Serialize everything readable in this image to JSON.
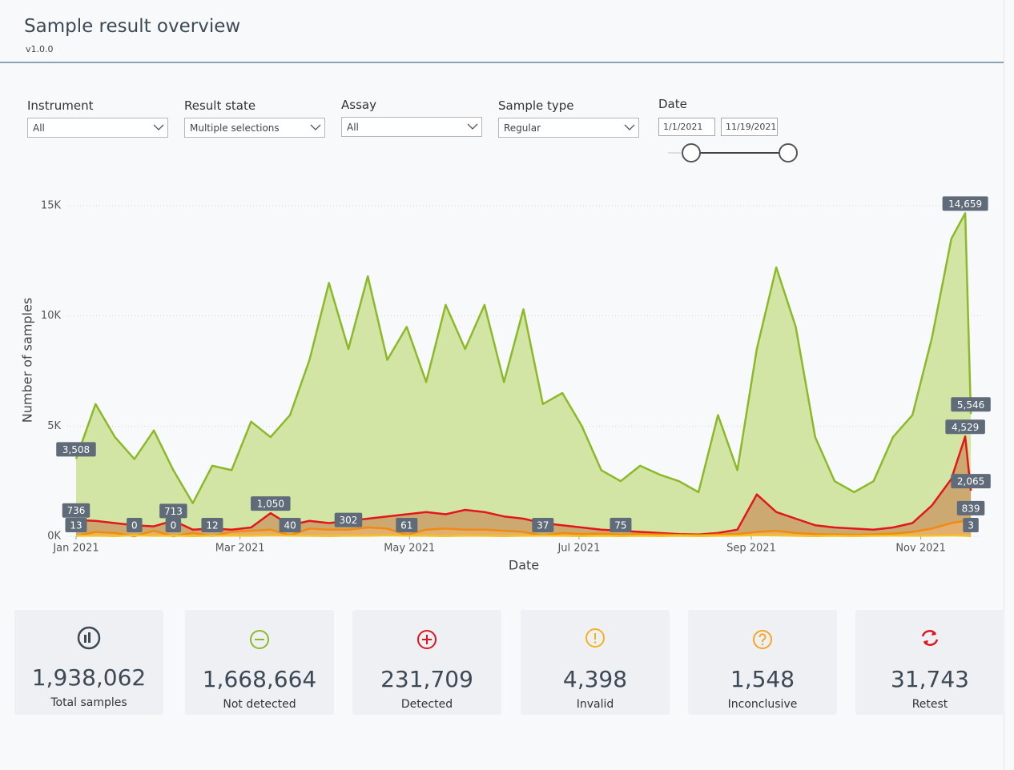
{
  "header": {
    "title": "Sample result overview",
    "version": "v1.0.0"
  },
  "filters": [
    {
      "label": "Instrument",
      "value": "All"
    },
    {
      "label": "Result state",
      "value": "Multiple selections"
    },
    {
      "label": "Assay",
      "value": "All"
    },
    {
      "label": "Sample type",
      "value": "Regular"
    }
  ],
  "date_filter": {
    "label": "Date",
    "start": "1/1/2021",
    "end": "11/19/2021"
  },
  "chart_data": {
    "type": "area",
    "x_label": "Date",
    "y_label": "Number of samples",
    "grid": true,
    "x": [
      1,
      8,
      15,
      22,
      29,
      36,
      43,
      50,
      57,
      64,
      71,
      78,
      85,
      92,
      99,
      106,
      113,
      120,
      127,
      134,
      141,
      148,
      155,
      162,
      169,
      176,
      183,
      190,
      197,
      204,
      211,
      218,
      225,
      232,
      239,
      246,
      253,
      260,
      267,
      274,
      281,
      288,
      295,
      302,
      309,
      316,
      321,
      323
    ],
    "xlim": [
      0,
      325
    ],
    "xticks": [
      {
        "value": 1,
        "label": "Jan 2021"
      },
      {
        "value": 60,
        "label": "Mar 2021"
      },
      {
        "value": 121,
        "label": "May 2021"
      },
      {
        "value": 182,
        "label": "Jul 2021"
      },
      {
        "value": 244,
        "label": "Sep 2021"
      },
      {
        "value": 305,
        "label": "Nov 2021"
      }
    ],
    "ylim": [
      0,
      15000
    ],
    "yticks": [
      {
        "value": 0,
        "label": "0K"
      },
      {
        "value": 5000,
        "label": "5K"
      },
      {
        "value": 10000,
        "label": "10K"
      },
      {
        "value": 15000,
        "label": "15K"
      }
    ],
    "series": [
      {
        "name": "Not detected",
        "color": "#8cb92a",
        "fill": "#d3e5a5",
        "values": [
          3508,
          6000,
          4500,
          3500,
          4800,
          3000,
          1500,
          3200,
          3000,
          5200,
          4500,
          5500,
          8000,
          11500,
          8500,
          11800,
          8000,
          9500,
          7000,
          10500,
          8500,
          10500,
          7000,
          10300,
          6000,
          6500,
          5000,
          3000,
          2500,
          3200,
          2800,
          2500,
          2000,
          5500,
          3000,
          8500,
          12200,
          9500,
          4500,
          2500,
          2000,
          2500,
          4500,
          5500,
          9000,
          13500,
          14659,
          5546
        ],
        "value_labels": [
          "3,508",
          null,
          null,
          null,
          null,
          null,
          null,
          null,
          null,
          null,
          null,
          null,
          null,
          null,
          null,
          null,
          null,
          null,
          null,
          null,
          null,
          null,
          null,
          null,
          null,
          null,
          null,
          null,
          null,
          null,
          null,
          null,
          null,
          null,
          null,
          null,
          null,
          null,
          null,
          null,
          null,
          null,
          null,
          null,
          null,
          null,
          "14,659",
          "5,546"
        ]
      },
      {
        "name": "Detected",
        "color": "#e3161b",
        "fill": "#c99a63",
        "values": [
          736,
          700,
          600,
          500,
          450,
          713,
          300,
          350,
          300,
          400,
          1050,
          500,
          700,
          600,
          700,
          800,
          900,
          1000,
          1100,
          1000,
          1200,
          1100,
          900,
          800,
          600,
          500,
          400,
          300,
          250,
          200,
          150,
          100,
          80,
          150,
          300,
          1900,
          1100,
          800,
          500,
          400,
          350,
          300,
          400,
          600,
          1400,
          2600,
          4529,
          2065
        ],
        "value_labels": [
          "736",
          null,
          null,
          null,
          null,
          "713",
          null,
          null,
          null,
          null,
          "1,050",
          null,
          null,
          null,
          null,
          null,
          null,
          null,
          null,
          null,
          null,
          null,
          null,
          null,
          null,
          null,
          null,
          null,
          null,
          null,
          null,
          null,
          null,
          null,
          null,
          null,
          null,
          null,
          null,
          null,
          null,
          null,
          null,
          null,
          null,
          null,
          "4,529",
          "2,065"
        ]
      },
      {
        "name": "Retest",
        "color": "#f08a12",
        "fill": "#e8b070",
        "values": [
          13,
          200,
          150,
          0,
          250,
          0,
          150,
          12,
          200,
          250,
          300,
          40,
          350,
          300,
          302,
          400,
          350,
          61,
          300,
          350,
          300,
          300,
          250,
          200,
          37,
          150,
          100,
          120,
          75,
          100,
          80,
          60,
          50,
          80,
          100,
          200,
          250,
          150,
          100,
          80,
          70,
          90,
          120,
          200,
          350,
          600,
          700,
          839
        ],
        "value_labels": [
          "13",
          null,
          null,
          "0",
          null,
          "0",
          null,
          "12",
          null,
          null,
          null,
          "40",
          null,
          null,
          "302",
          null,
          null,
          "61",
          null,
          null,
          null,
          null,
          null,
          null,
          "37",
          null,
          null,
          null,
          "75",
          null,
          null,
          null,
          null,
          null,
          null,
          null,
          null,
          null,
          null,
          null,
          null,
          null,
          null,
          null,
          null,
          null,
          null,
          "839"
        ]
      },
      {
        "name": "Invalid",
        "color": "#f7c31e",
        "fill": "#f3d98a",
        "values": [
          20,
          30,
          10,
          40,
          20,
          30,
          10,
          20,
          30,
          20,
          40,
          30,
          20,
          10,
          30,
          20,
          40,
          30,
          20,
          10,
          30,
          20,
          10,
          20,
          30,
          20,
          10,
          20,
          10,
          20,
          10,
          20,
          10,
          20,
          30,
          50,
          40,
          20,
          10,
          20,
          10,
          20,
          30,
          20,
          30,
          40,
          20,
          3
        ],
        "value_labels": [
          null,
          null,
          null,
          null,
          null,
          null,
          null,
          null,
          null,
          null,
          null,
          null,
          null,
          null,
          null,
          null,
          null,
          null,
          null,
          null,
          null,
          null,
          null,
          null,
          null,
          null,
          null,
          null,
          null,
          null,
          null,
          null,
          null,
          null,
          null,
          null,
          null,
          null,
          null,
          null,
          null,
          null,
          null,
          null,
          null,
          null,
          null,
          "3"
        ]
      }
    ]
  },
  "kpis": [
    {
      "value": "1,938,062",
      "label": "Total samples"
    },
    {
      "value": "1,668,664",
      "label": "Not detected"
    },
    {
      "value": "231,709",
      "label": "Detected"
    },
    {
      "value": "4,398",
      "label": "Invalid"
    },
    {
      "value": "1,548",
      "label": "Inconclusive"
    },
    {
      "value": "31,743",
      "label": "Retest"
    }
  ]
}
